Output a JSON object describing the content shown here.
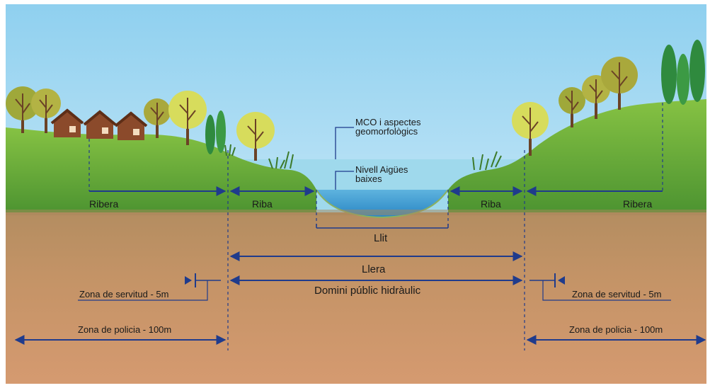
{
  "labels": {
    "mco_line1": "MCO i aspectes",
    "mco_line2": "geomorfològics",
    "aigues_line1": "Nivell Aigües",
    "aigues_line2": "baixes",
    "ribera_left": "Ribera",
    "ribera_right": "Ribera",
    "riba_left": "Riba",
    "riba_right": "Riba",
    "llit": "Llit",
    "llera": "Llera",
    "domini": "Domini públic hidràulic",
    "servitud_left": "Zona de servitud - 5m",
    "servitud_right": "Zona de servitud - 5m",
    "policia_left": "Zona de policia - 100m",
    "policia_right": "Zona de policia - 100m"
  },
  "colors": {
    "sky_top": "#8fd0ef",
    "sky_bottom": "#e6f5fc",
    "grass_top": "#7fbb3f",
    "grass_bottom": "#4a8f2e",
    "soil_top": "#a7885c",
    "soil_bottom": "#d59a70",
    "water_high": "#98d7ea",
    "water_low": "#2d8cc8",
    "arrow": "#1f3b8c",
    "house": "#8b4a2b",
    "tree_olive": "#9fa83a",
    "tree_yellow": "#d7dc5c",
    "tree_dark": "#2f8a3e"
  },
  "icons": [
    "house-icon",
    "tree-icon",
    "cypress-icon",
    "reed-icon"
  ]
}
